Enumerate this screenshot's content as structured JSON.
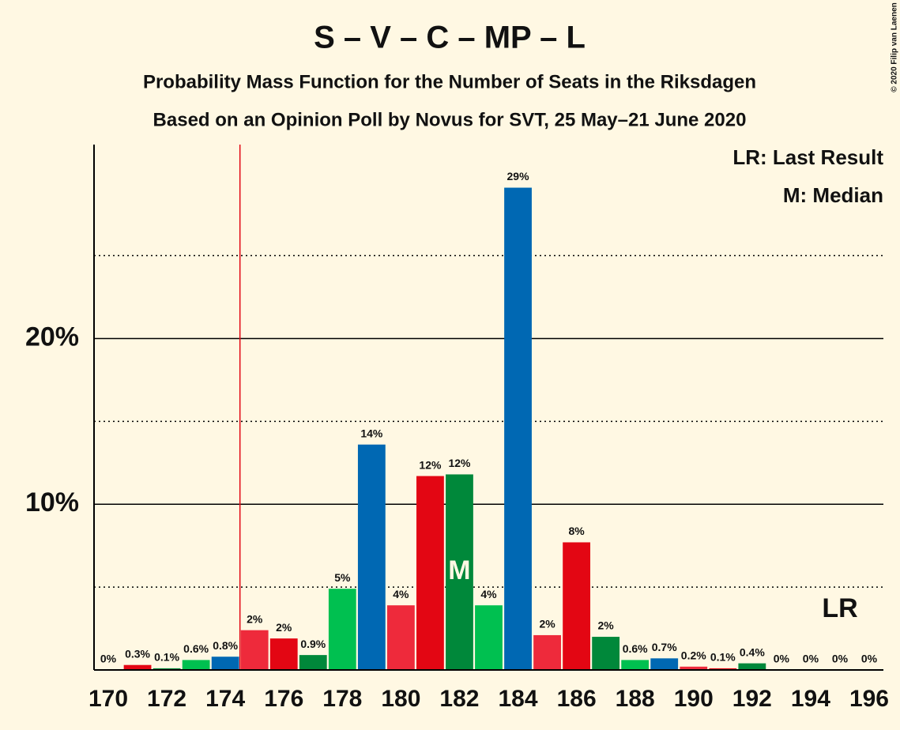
{
  "chart_data": {
    "type": "bar",
    "title": "S – V – C – MP – L",
    "subtitle": "Probability Mass Function for the Number of Seats in the Riksdagen",
    "subtitle2": "Based on an Opinion Poll by Novus for SVT, 25 May–21 June 2020",
    "copyright": "© 2020 Filip van Laenen",
    "legend": [
      "LR: Last Result",
      "M: Median"
    ],
    "x": [
      170,
      171,
      172,
      173,
      174,
      175,
      176,
      177,
      178,
      179,
      180,
      181,
      182,
      183,
      184,
      185,
      186,
      187,
      188,
      189,
      190,
      191,
      192,
      193,
      194,
      195,
      196
    ],
    "values": [
      0,
      0.3,
      0.1,
      0.6,
      0.8,
      2.4,
      1.9,
      0.9,
      4.9,
      13.6,
      3.9,
      11.7,
      11.8,
      3.9,
      29.1,
      2.1,
      7.7,
      2.0,
      0.6,
      0.7,
      0.2,
      0.1,
      0.4,
      0,
      0,
      0,
      0
    ],
    "value_labels": [
      "0%",
      "0.3%",
      "0.1%",
      "0.6%",
      "0.8%",
      "2%",
      "2%",
      "0.9%",
      "5%",
      "14%",
      "4%",
      "12%",
      "12%",
      "4%",
      "29%",
      "2%",
      "8%",
      "2%",
      "0.6%",
      "0.7%",
      "0.2%",
      "0.1%",
      "0.4%",
      "0%",
      "0%",
      "0%",
      "0%"
    ],
    "colors": [
      "#ee2a3b",
      "#e30613",
      "#00883a",
      "#00c050",
      "#0068b3",
      "#ee2a3b",
      "#e30613",
      "#00883a",
      "#00c050",
      "#0068b3",
      "#ee2a3b",
      "#e30613",
      "#00883a",
      "#00c050",
      "#0068b3",
      "#ee2a3b",
      "#e30613",
      "#00883a",
      "#00c050",
      "#0068b3",
      "#ee2a3b",
      "#e30613",
      "#00883a",
      "#00c050",
      "#0068b3",
      "#ee2a3b",
      "#e30613"
    ],
    "xlim": [
      169.5,
      196.5
    ],
    "xticks": [
      170,
      172,
      174,
      176,
      178,
      180,
      182,
      184,
      186,
      188,
      190,
      192,
      194,
      196
    ],
    "ylim": [
      0,
      31.7
    ],
    "yticks": [
      {
        "value": 10,
        "label": "10%"
      },
      {
        "value": 20,
        "label": "20%"
      }
    ],
    "minor_yticks": [
      5,
      15,
      25
    ],
    "last_result": 174.5,
    "last_result_label": "LR",
    "median": 182,
    "median_label": "M"
  }
}
